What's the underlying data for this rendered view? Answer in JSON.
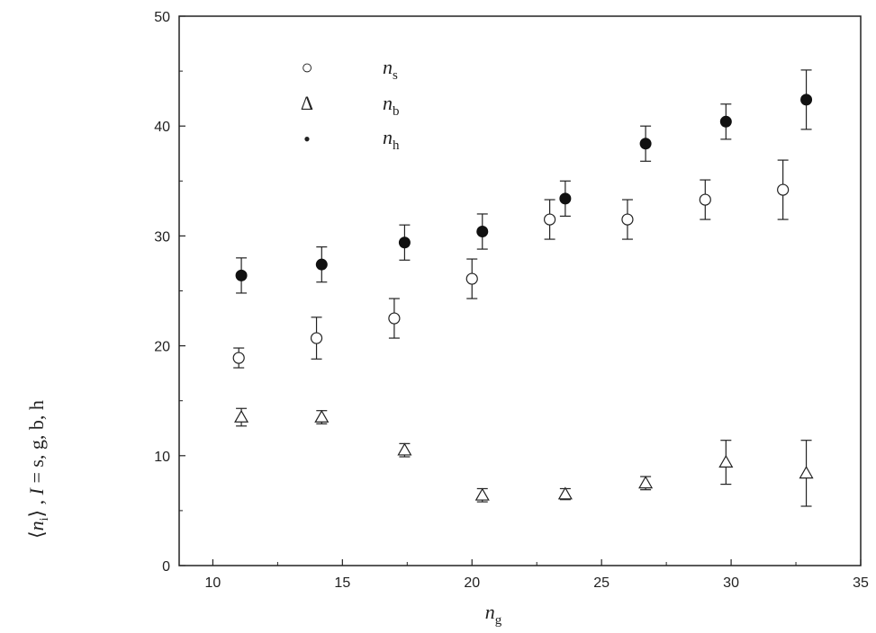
{
  "chart_data": {
    "type": "scatter",
    "x_tick_labels": [
      "10",
      "15",
      "20",
      "25",
      "30",
      "35"
    ],
    "y_tick_labels": [
      "0",
      "10",
      "20",
      "30",
      "40",
      "50"
    ],
    "xlim": [
      8.7,
      35
    ],
    "ylim": [
      0,
      50
    ],
    "xlabel": {
      "var": "n",
      "sub": "g"
    },
    "ylabel": {
      "open": "⟨",
      "var": "n",
      "sub": "i",
      "close": "⟩",
      "rest": " , ",
      "I": "I",
      "eq": " = s, g, b, h"
    },
    "grid": false,
    "legend_position": "top-left",
    "series": [
      {
        "legend_symbol": "○",
        "legend_var": "n",
        "legend_sub": "s",
        "marker": "open-circle",
        "points": [
          {
            "x": 11.0,
            "y": 18.9,
            "yerr": 0.9
          },
          {
            "x": 14.0,
            "y": 20.7,
            "yerr": 1.9
          },
          {
            "x": 17.0,
            "y": 22.5,
            "yerr": 1.8
          },
          {
            "x": 20.0,
            "y": 26.1,
            "yerr": 1.8
          },
          {
            "x": 23.0,
            "y": 31.5,
            "yerr": 1.8
          },
          {
            "x": 26.0,
            "y": 31.5,
            "yerr": 1.8
          },
          {
            "x": 29.0,
            "y": 33.3,
            "yerr": 1.8
          },
          {
            "x": 32.0,
            "y": 34.2,
            "yerr": 2.7
          }
        ]
      },
      {
        "legend_symbol": "Δ",
        "legend_var": "n",
        "legend_sub": "b",
        "marker": "open-triangle",
        "points": [
          {
            "x": 11.1,
            "y": 13.5,
            "yerr": 0.8
          },
          {
            "x": 14.2,
            "y": 13.5,
            "yerr": 0.6
          },
          {
            "x": 17.4,
            "y": 10.5,
            "yerr": 0.6
          },
          {
            "x": 20.4,
            "y": 6.4,
            "yerr": 0.6
          },
          {
            "x": 23.6,
            "y": 6.5,
            "yerr": 0.5
          },
          {
            "x": 26.7,
            "y": 7.5,
            "yerr": 0.6
          },
          {
            "x": 29.8,
            "y": 9.4,
            "yerr": 2.0
          },
          {
            "x": 32.9,
            "y": 8.4,
            "yerr": 3.0
          }
        ]
      },
      {
        "legend_symbol": "•",
        "legend_var": "n",
        "legend_sub": "h",
        "marker": "filled-circle",
        "points": [
          {
            "x": 11.1,
            "y": 26.4,
            "yerr": 1.6
          },
          {
            "x": 14.2,
            "y": 27.4,
            "yerr": 1.6
          },
          {
            "x": 17.4,
            "y": 29.4,
            "yerr": 1.6
          },
          {
            "x": 20.4,
            "y": 30.4,
            "yerr": 1.6
          },
          {
            "x": 23.6,
            "y": 33.4,
            "yerr": 1.6
          },
          {
            "x": 26.7,
            "y": 38.4,
            "yerr": 1.6
          },
          {
            "x": 29.8,
            "y": 40.4,
            "yerr": 1.6
          },
          {
            "x": 32.9,
            "y": 42.4,
            "yerr": 2.7
          }
        ]
      }
    ]
  }
}
